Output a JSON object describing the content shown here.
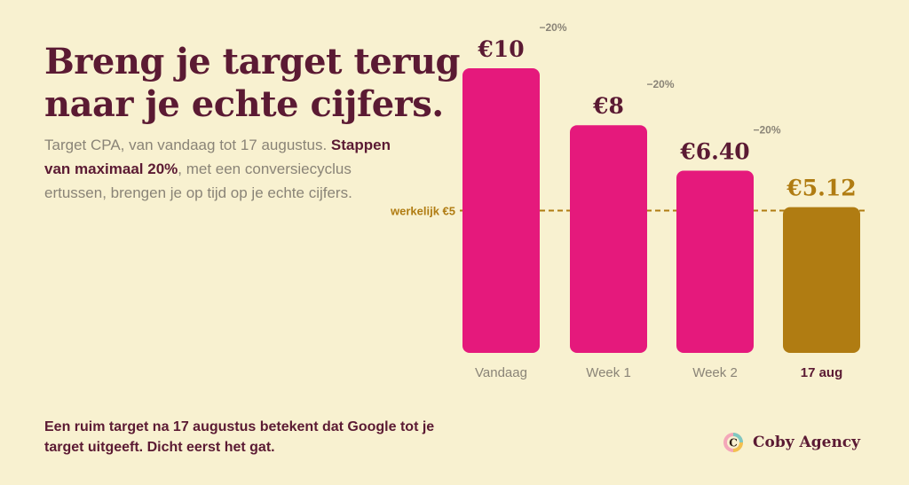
{
  "title": "Breng je target terug naar je echte cijfers.",
  "subtitle": {
    "line1": "Target CPA, van vandaag tot 17 augustus.",
    "bold": "Stappen van maximaal 20%",
    "rest": ", met een conversiecyclus ertussen, brengen je op tijd op je echte cijfers."
  },
  "footer": "Een ruim target na 17 augustus betekent dat Google tot je target uitgeeft. Dicht eerst het gat.",
  "brand": {
    "name": "Coby Agency",
    "logo_letter": "C"
  },
  "colors": {
    "bar": "#e5197c",
    "bar_final": "#b07c12",
    "value_text": "#5b1a33",
    "value_final": "#b07c12",
    "muted": "#8a8477",
    "reference": "#b07c12"
  },
  "chart_data": {
    "type": "bar",
    "categories": [
      "Vandaag",
      "Week 1",
      "Week 2",
      "17 aug"
    ],
    "values": [
      10,
      8,
      6.4,
      5.12
    ],
    "value_labels": [
      "€10",
      "€8",
      "€6.40",
      "€5.12"
    ],
    "step_labels": [
      "−20%",
      "−20%",
      "−20%"
    ],
    "reference_line": {
      "value": 5,
      "label": "werkelijk €5"
    },
    "ylim": [
      0,
      10
    ]
  }
}
